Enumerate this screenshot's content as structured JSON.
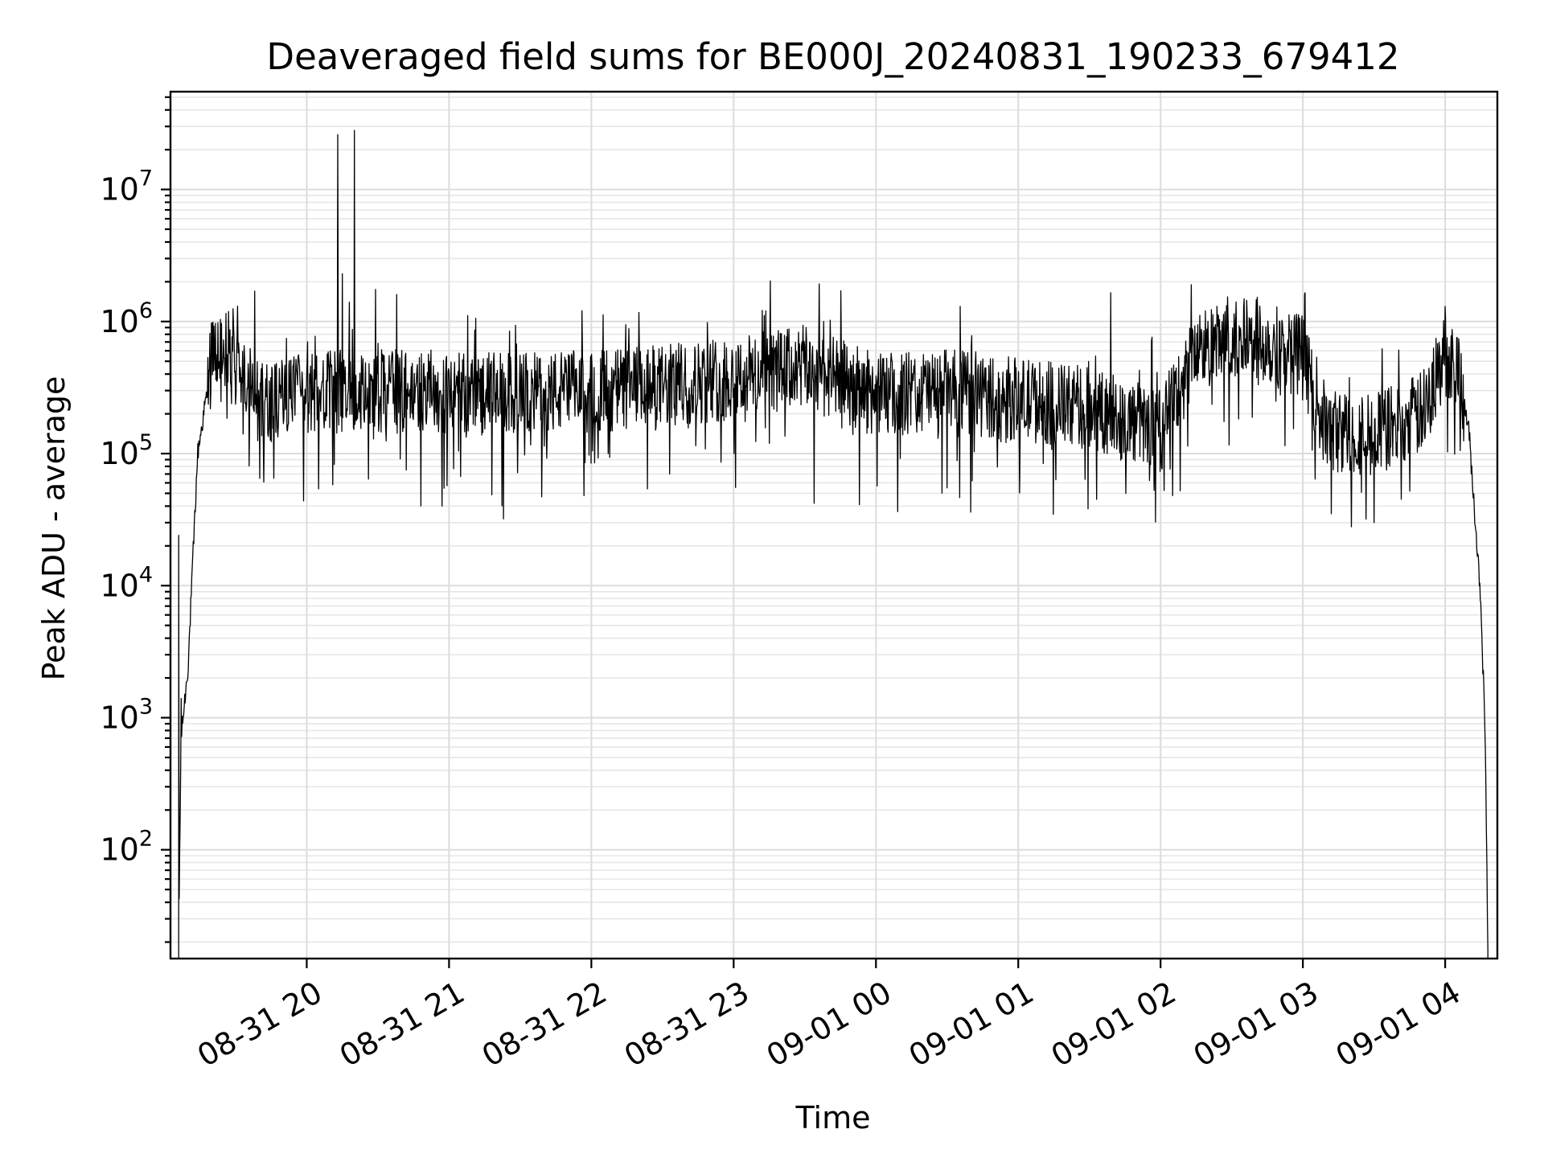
{
  "chart_data": {
    "type": "line",
    "title": "Deaveraged field sums for BE000J_20240831_190233_679412",
    "xlabel": "Time",
    "ylabel": "Peak ADU - average",
    "yscale": "log",
    "ylim": [
      15,
      55000000
    ],
    "xlim": [
      "2024-08-31 19:02:33",
      "2024-09-01 04:22:00"
    ],
    "grid": true,
    "line_color": "#000000",
    "y_ticks": [
      {
        "base": "10",
        "exp": "2",
        "value": 100
      },
      {
        "base": "10",
        "exp": "3",
        "value": 1000
      },
      {
        "base": "10",
        "exp": "4",
        "value": 10000
      },
      {
        "base": "10",
        "exp": "5",
        "value": 100000
      },
      {
        "base": "10",
        "exp": "6",
        "value": 1000000
      },
      {
        "base": "10",
        "exp": "7",
        "value": 10000000
      }
    ],
    "x_ticks": [
      {
        "label": "08-31 20",
        "value": "2024-08-31 20:00"
      },
      {
        "label": "08-31 21",
        "value": "2024-08-31 21:00"
      },
      {
        "label": "08-31 22",
        "value": "2024-08-31 22:00"
      },
      {
        "label": "08-31 23",
        "value": "2024-08-31 23:00"
      },
      {
        "label": "09-01 00",
        "value": "2024-09-01 00:00"
      },
      {
        "label": "09-01 01",
        "value": "2024-09-01 01:00"
      },
      {
        "label": "09-01 02",
        "value": "2024-09-01 02:00"
      },
      {
        "label": "09-01 03",
        "value": "2024-09-01 03:00"
      },
      {
        "label": "09-01 04",
        "value": "2024-09-01 04:00"
      }
    ],
    "series": [
      {
        "baseline_profile": [
          {
            "t": "2024-08-31 19:06",
            "y": 20
          },
          {
            "t": "2024-08-31 19:07",
            "y": 700
          },
          {
            "t": "2024-08-31 19:10",
            "y": 2500
          },
          {
            "t": "2024-08-31 19:14",
            "y": 100000
          },
          {
            "t": "2024-08-31 19:20",
            "y": 500000
          },
          {
            "t": "2024-08-31 19:25",
            "y": 650000
          },
          {
            "t": "2024-08-31 19:40",
            "y": 250000
          },
          {
            "t": "2024-08-31 20:20",
            "y": 300000
          },
          {
            "t": "2024-08-31 21:30",
            "y": 280000
          },
          {
            "t": "2024-08-31 22:30",
            "y": 320000
          },
          {
            "t": "2024-08-31 23:30",
            "y": 450000
          },
          {
            "t": "2024-09-01 00:00",
            "y": 280000
          },
          {
            "t": "2024-09-01 00:30",
            "y": 300000
          },
          {
            "t": "2024-09-01 01:30",
            "y": 220000
          },
          {
            "t": "2024-09-01 02:00",
            "y": 150000
          },
          {
            "t": "2024-09-01 02:15",
            "y": 600000
          },
          {
            "t": "2024-09-01 02:40",
            "y": 750000
          },
          {
            "t": "2024-09-01 03:00",
            "y": 550000
          },
          {
            "t": "2024-09-01 03:10",
            "y": 150000
          },
          {
            "t": "2024-09-01 03:30",
            "y": 140000
          },
          {
            "t": "2024-09-01 03:50",
            "y": 200000
          },
          {
            "t": "2024-09-01 04:00",
            "y": 550000
          },
          {
            "t": "2024-09-01 04:05",
            "y": 500000
          },
          {
            "t": "2024-09-01 04:10",
            "y": 150000
          },
          {
            "t": "2024-09-01 04:15",
            "y": 8000
          },
          {
            "t": "2024-09-01 04:17",
            "y": 600
          },
          {
            "t": "2024-09-01 04:18",
            "y": 15
          }
        ],
        "peaks": [
          {
            "t": "2024-08-31 19:06",
            "y": 24000
          },
          {
            "t": "2024-08-31 19:07",
            "y": 1400
          },
          {
            "t": "2024-08-31 19:29",
            "y": 1250000
          },
          {
            "t": "2024-08-31 19:38",
            "y": 1700000
          },
          {
            "t": "2024-08-31 20:13",
            "y": 26000000
          },
          {
            "t": "2024-08-31 20:15",
            "y": 2300000
          },
          {
            "t": "2024-08-31 20:18",
            "y": 1400000
          },
          {
            "t": "2024-08-31 20:20",
            "y": 28000000
          },
          {
            "t": "2024-08-31 20:29",
            "y": 1750000
          },
          {
            "t": "2024-08-31 20:38",
            "y": 1600000
          },
          {
            "t": "2024-08-31 23:38",
            "y": 1000000
          },
          {
            "t": "2024-09-01 01:39",
            "y": 1650000
          },
          {
            "t": "2024-09-01 02:13",
            "y": 1900000
          },
          {
            "t": "2024-09-01 03:01",
            "y": 1650000
          },
          {
            "t": "2024-09-01 04:00",
            "y": 1300000
          }
        ],
        "dips": [
          {
            "t": "2024-08-31 20:05",
            "y": 54000
          },
          {
            "t": "2024-08-31 20:11",
            "y": 58000
          },
          {
            "t": "2024-08-31 20:42",
            "y": 75000
          },
          {
            "t": "2024-08-31 20:57",
            "y": 40000
          },
          {
            "t": "2024-08-31 21:23",
            "y": 32000
          },
          {
            "t": "2024-08-31 21:39",
            "y": 47000
          },
          {
            "t": "2024-08-31 21:57",
            "y": 48000
          },
          {
            "t": "2024-08-31 22:33",
            "y": 70000
          },
          {
            "t": "2024-08-31 23:34",
            "y": 42000
          },
          {
            "t": "2024-08-31 23:53",
            "y": 41000
          },
          {
            "t": "2024-09-01 00:30",
            "y": 55000
          },
          {
            "t": "2024-09-01 00:40",
            "y": 36000
          },
          {
            "t": "2024-09-01 01:33",
            "y": 45000
          },
          {
            "t": "2024-09-01 02:05",
            "y": 48000
          },
          {
            "t": "2024-09-01 03:12",
            "y": 35000
          },
          {
            "t": "2024-09-01 03:30",
            "y": 30000
          },
          {
            "t": "2024-09-01 03:45",
            "y": 52000
          }
        ]
      }
    ]
  }
}
